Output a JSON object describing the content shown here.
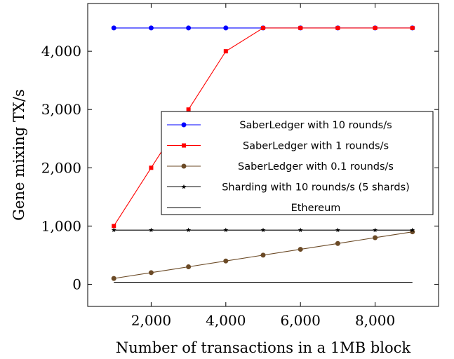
{
  "chart_data": {
    "type": "line",
    "title": "",
    "xlabel": "Number of transactions in a 1MB block",
    "ylabel": "Gene mixing TX/s",
    "xlim": [
      300,
      9700
    ],
    "ylim": [
      -380,
      4820
    ],
    "xticks": [
      2000,
      4000,
      6000,
      8000
    ],
    "xtick_labels": [
      "2,000",
      "4,000",
      "6,000",
      "8,000"
    ],
    "yticks": [
      0,
      1000,
      2000,
      3000,
      4000
    ],
    "ytick_labels": [
      "0",
      "1,000",
      "2,000",
      "3,000",
      "4,000"
    ],
    "grid": false,
    "legend_position": "center-right",
    "series": [
      {
        "name": "SaberLedger with 10 rounds/s",
        "color": "#0000ff",
        "marker": "circle",
        "x": [
          1000,
          2000,
          3000,
          4000,
          5000,
          6000,
          7000,
          8000,
          9000
        ],
        "y": [
          4400,
          4400,
          4400,
          4400,
          4400,
          4400,
          4400,
          4400,
          4400
        ]
      },
      {
        "name": "SaberLedger with 1 rounds/s",
        "color": "#ff0000",
        "marker": "square",
        "x": [
          1000,
          2000,
          3000,
          4000,
          5000,
          6000,
          7000,
          8000,
          9000
        ],
        "y": [
          1000,
          2000,
          3000,
          4000,
          4400,
          4400,
          4400,
          4400,
          4400
        ]
      },
      {
        "name": "SaberLedger with 0.1 rounds/s",
        "color": "#6b4a26",
        "marker": "circle",
        "x": [
          1000,
          2000,
          3000,
          4000,
          5000,
          6000,
          7000,
          8000,
          9000
        ],
        "y": [
          100,
          200,
          300,
          400,
          500,
          600,
          700,
          800,
          900
        ]
      },
      {
        "name": "Sharding with 10 rounds/s (5 shards)",
        "color": "#000000",
        "marker": "star",
        "x": [
          1000,
          2000,
          3000,
          4000,
          5000,
          6000,
          7000,
          8000,
          9000
        ],
        "y": [
          930,
          930,
          930,
          930,
          930,
          930,
          930,
          930,
          930
        ]
      },
      {
        "name": "Ethereum",
        "color": "#000000",
        "marker": "none",
        "x": [
          1000,
          9000
        ],
        "y": [
          35,
          35
        ]
      }
    ]
  }
}
